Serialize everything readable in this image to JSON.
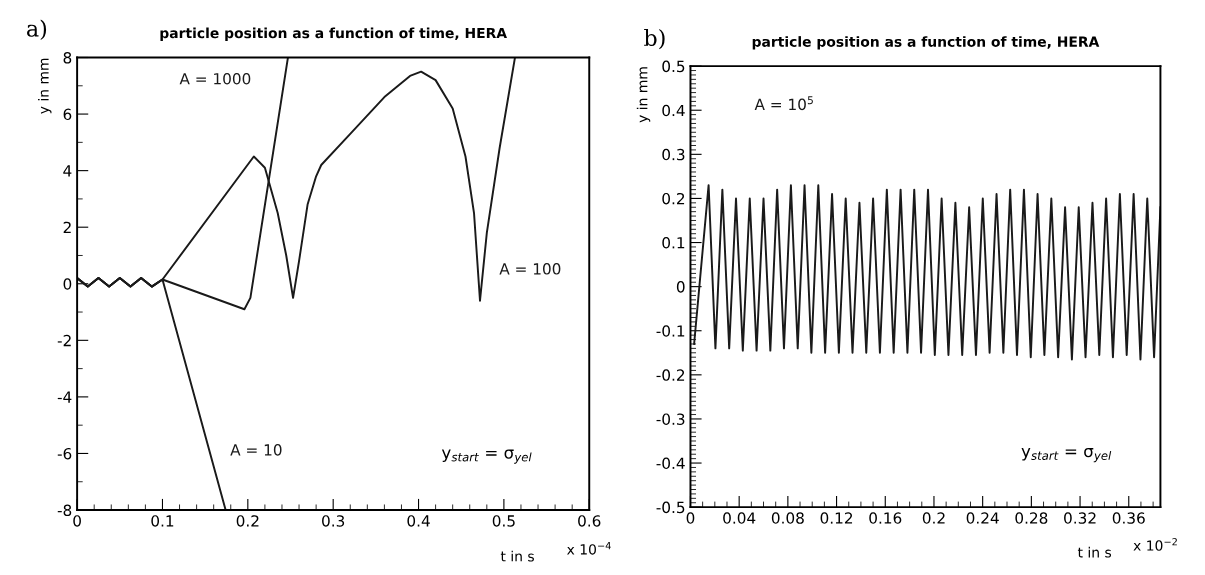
{
  "chart_data": [
    {
      "type": "line",
      "title": "particle position as a function of time, HERA",
      "xlabel": "t in s",
      "ylabel": "y in mm",
      "xlim": [
        0,
        0.6
      ],
      "xticks": [
        0,
        0.1,
        0.2,
        0.3,
        0.4,
        0.5,
        0.6
      ],
      "ylim": [
        -8,
        8
      ],
      "yticks": [
        -8,
        -6,
        -4,
        -2,
        0,
        2,
        4,
        6,
        8
      ],
      "grid": false,
      "legend": false,
      "marker": "none",
      "line_style": "solid",
      "series": [
        {
          "name": "A = 10",
          "color": "#1a1a1a",
          "x": [
            0,
            0.0125,
            0.025,
            0.0375,
            0.05,
            0.0625,
            0.075,
            0.0875,
            0.1,
            0.174
          ],
          "values": [
            0.2,
            -0.1,
            0.2,
            -0.1,
            0.2,
            -0.1,
            0.2,
            -0.1,
            0.15,
            -8
          ]
        },
        {
          "name": "A = 100",
          "color": "#1a1a1a",
          "x": [
            0,
            0.0125,
            0.025,
            0.0375,
            0.05,
            0.0625,
            0.075,
            0.0875,
            0.1,
            0.207,
            0.22,
            0.235,
            0.245,
            0.253,
            0.26,
            0.27,
            0.28,
            0.286,
            0.32,
            0.36,
            0.39,
            0.403,
            0.42,
            0.44,
            0.455,
            0.465,
            0.472,
            0.48,
            0.495,
            0.513
          ],
          "values": [
            0.2,
            -0.1,
            0.2,
            -0.1,
            0.2,
            -0.1,
            0.2,
            -0.1,
            0.15,
            4.5,
            4.1,
            2.5,
            1.0,
            -0.5,
            0.8,
            2.8,
            3.8,
            4.2,
            5.3,
            6.6,
            7.35,
            7.5,
            7.2,
            6.2,
            4.5,
            2.5,
            -0.6,
            1.8,
            4.8,
            8
          ]
        },
        {
          "name": "A = 1000",
          "color": "#1a1a1a",
          "x": [
            0,
            0.0125,
            0.025,
            0.0375,
            0.05,
            0.0625,
            0.075,
            0.0875,
            0.1,
            0.196,
            0.203,
            0.247
          ],
          "values": [
            0.2,
            -0.1,
            0.2,
            -0.1,
            0.2,
            -0.1,
            0.2,
            -0.1,
            0.15,
            -0.9,
            -0.5,
            8
          ]
        }
      ],
      "annotations": [
        "a)",
        "y$_{start}$ = σ$_{yel}$",
        "x 10$^{−4}$"
      ]
    },
    {
      "type": "line",
      "title": "particle position as a function of time, HERA",
      "xlabel": "t in s",
      "ylabel": "y in mm",
      "xlim": [
        0,
        0.386
      ],
      "xticks": [
        0,
        0.04,
        0.08,
        0.12,
        0.16,
        0.2,
        0.24,
        0.28,
        0.32,
        0.36
      ],
      "ylim": [
        -0.5,
        0.5
      ],
      "yticks": [
        -0.5,
        -0.4,
        -0.3,
        -0.2,
        -0.1,
        0,
        0.1,
        0.2,
        0.3,
        0.4,
        0.5
      ],
      "grid": false,
      "legend": false,
      "marker": "none",
      "line_style": "solid",
      "series": [
        {
          "name": "A = 10$^{5}$",
          "color": "#1a1a1a",
          "x": [
            0.003,
            0.0149,
            0.0205,
            0.0262,
            0.0318,
            0.0374,
            0.043,
            0.0487,
            0.0543,
            0.06,
            0.0656,
            0.0712,
            0.0768,
            0.0825,
            0.0881,
            0.0937,
            0.0993,
            0.105,
            0.1106,
            0.1163,
            0.1219,
            0.1275,
            0.1331,
            0.1388,
            0.1444,
            0.15,
            0.1556,
            0.1613,
            0.1669,
            0.1726,
            0.1782,
            0.1838,
            0.1894,
            0.1951,
            0.2007,
            0.2063,
            0.2119,
            0.2176,
            0.2232,
            0.2289,
            0.2345,
            0.2401,
            0.2457,
            0.2514,
            0.257,
            0.2626,
            0.2682,
            0.2739,
            0.2795,
            0.2851,
            0.2907,
            0.2964,
            0.302,
            0.3077,
            0.3133,
            0.3189,
            0.3245,
            0.3302,
            0.3358,
            0.3414,
            0.347,
            0.3527,
            0.3583,
            0.364,
            0.3696,
            0.3752,
            0.3808,
            0.386
          ],
          "values": [
            -0.13,
            0.23,
            -0.14,
            0.22,
            -0.14,
            0.2,
            -0.145,
            0.2,
            -0.145,
            0.2,
            -0.145,
            0.22,
            -0.14,
            0.23,
            -0.14,
            0.23,
            -0.15,
            0.23,
            -0.15,
            0.21,
            -0.15,
            0.2,
            -0.15,
            0.19,
            -0.15,
            0.2,
            -0.15,
            0.22,
            -0.15,
            0.22,
            -0.15,
            0.22,
            -0.15,
            0.22,
            -0.155,
            0.2,
            -0.155,
            0.19,
            -0.155,
            0.18,
            -0.155,
            0.2,
            -0.15,
            0.21,
            -0.15,
            0.22,
            -0.155,
            0.22,
            -0.16,
            0.21,
            -0.155,
            0.2,
            -0.16,
            0.18,
            -0.165,
            0.18,
            -0.16,
            0.19,
            -0.155,
            0.2,
            -0.16,
            0.21,
            -0.155,
            0.21,
            -0.165,
            0.2,
            -0.16,
            0.18
          ]
        }
      ],
      "annotations": [
        "b)",
        "y$_{start}$ = σ$_{yel}$",
        "x 10$^{−2}$"
      ]
    }
  ]
}
